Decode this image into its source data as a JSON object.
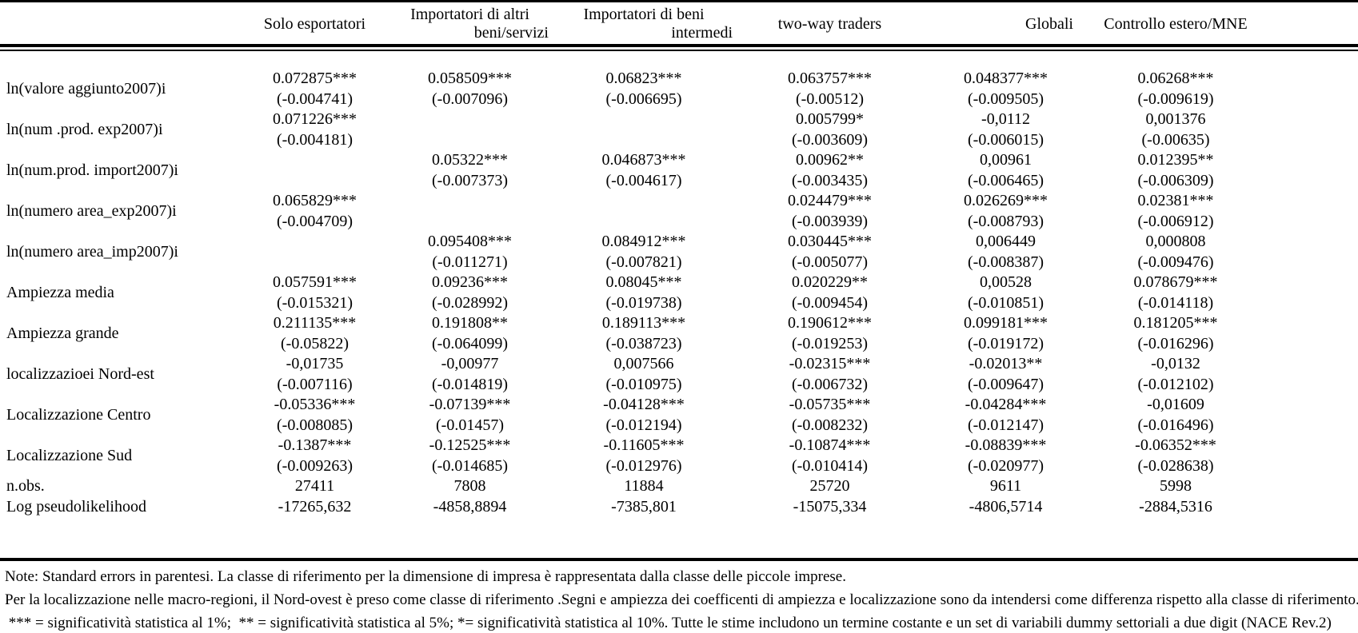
{
  "table": {
    "columns": [
      {
        "lines": [
          ""
        ],
        "align": "center"
      },
      {
        "lines": [
          "Solo esportatori"
        ],
        "align": "center"
      },
      {
        "lines": [
          "Importatori di altri",
          "beni/servizi"
        ],
        "align": "center",
        "last_line_align": "right"
      },
      {
        "lines": [
          "Importatori di beni",
          "intermedi"
        ],
        "align": "center",
        "last_line_align": "right"
      },
      {
        "lines": [
          "two-way traders"
        ],
        "align": "center"
      },
      {
        "lines": [
          "Globali"
        ],
        "align": "right"
      },
      {
        "lines": [
          "Controllo estero/MNE"
        ],
        "align": "center"
      }
    ],
    "rows": [
      {
        "type": "pair",
        "label": "ln(valore aggiunto2007)i",
        "cells": [
          [
            "0.072875***",
            "(-0.004741)"
          ],
          [
            "0.058509***",
            "(-0.007096)"
          ],
          [
            "0.06823***",
            "(-0.006695)"
          ],
          [
            "0.063757***",
            "(-0.00512)"
          ],
          [
            "0.048377***",
            "(-0.009505)"
          ],
          [
            "0.06268***",
            "(-0.009619)"
          ]
        ]
      },
      {
        "type": "pair",
        "label": "ln(num .prod. exp2007)i",
        "cells": [
          [
            "0.071226***",
            "(-0.004181)"
          ],
          null,
          null,
          [
            "0.005799*",
            "(-0.003609)"
          ],
          [
            "-0,0112",
            "(-0.006015)"
          ],
          [
            "0,001376",
            "(-0.00635)"
          ]
        ]
      },
      {
        "type": "pair",
        "label": "ln(num.prod. import2007)i",
        "cells": [
          null,
          [
            "0.05322***",
            "(-0.007373)"
          ],
          [
            "0.046873***",
            "(-0.004617)"
          ],
          [
            "0.00962**",
            "(-0.003435)"
          ],
          [
            "0,00961",
            "(-0.006465)"
          ],
          [
            "0.012395**",
            "(-0.006309)"
          ]
        ]
      },
      {
        "type": "pair",
        "label": "ln(numero area_exp2007)i",
        "cells": [
          [
            "0.065829***",
            "(-0.004709)"
          ],
          null,
          null,
          [
            "0.024479***",
            "(-0.003939)"
          ],
          [
            "0.026269***",
            "(-0.008793)"
          ],
          [
            "0.02381***",
            "(-0.006912)"
          ]
        ]
      },
      {
        "type": "pair",
        "label": "ln(numero area_imp2007)i",
        "cells": [
          null,
          [
            "0.095408***",
            "(-0.011271)"
          ],
          [
            "0.084912***",
            "(-0.007821)"
          ],
          [
            "0.030445***",
            "(-0.005077)"
          ],
          [
            "0,006449",
            "(-0.008387)"
          ],
          [
            "0,000808",
            "(-0.009476)"
          ]
        ]
      },
      {
        "type": "pair",
        "label": "Ampiezza media",
        "cells": [
          [
            "0.057591***",
            "(-0.015321)"
          ],
          [
            "0.09236***",
            "(-0.028992)"
          ],
          [
            "0.08045***",
            "(-0.019738)"
          ],
          [
            "0.020229**",
            "(-0.009454)"
          ],
          [
            "0,00528",
            "(-0.010851)"
          ],
          [
            "0.078679***",
            "(-0.014118)"
          ]
        ]
      },
      {
        "type": "pair",
        "label": "Ampiezza grande",
        "cells": [
          [
            "0.211135***",
            "(-0.05822)"
          ],
          [
            "0.191808**",
            "(-0.064099)"
          ],
          [
            "0.189113***",
            "(-0.038723)"
          ],
          [
            "0.190612***",
            "(-0.019253)"
          ],
          [
            "0.099181***",
            "(-0.019172)"
          ],
          [
            "0.181205***",
            "(-0.016296)"
          ]
        ]
      },
      {
        "type": "pair",
        "label": "localizzazioei Nord-est",
        "cells": [
          [
            "-0,01735",
            "(-0.007116)"
          ],
          [
            "-0,00977",
            "(-0.014819)"
          ],
          [
            "0,007566",
            "(-0.010975)"
          ],
          [
            "-0.02315***",
            "(-0.006732)"
          ],
          [
            "-0.02013**",
            "(-0.009647)"
          ],
          [
            "-0,0132",
            "(-0.012102)"
          ]
        ]
      },
      {
        "type": "pair",
        "label": "Localizzazione Centro",
        "cells": [
          [
            "-0.05336***",
            "(-0.008085)"
          ],
          [
            "-0.07139***",
            "(-0.01457)"
          ],
          [
            "-0.04128***",
            "(-0.012194)"
          ],
          [
            "-0.05735***",
            "(-0.008232)"
          ],
          [
            "-0.04284***",
            "(-0.012147)"
          ],
          [
            "-0,01609",
            "(-0.016496)"
          ]
        ]
      },
      {
        "type": "pair",
        "label": "Localizzazione Sud",
        "cells": [
          [
            "-0.1387***",
            "(-0.009263)"
          ],
          [
            "-0.12525***",
            "(-0.014685)"
          ],
          [
            "-0.11605***",
            "(-0.012976)"
          ],
          [
            "-0.10874***",
            "(-0.010414)"
          ],
          [
            "-0.08839***",
            "(-0.020977)"
          ],
          [
            "-0.06352***",
            "(-0.028638)"
          ]
        ]
      },
      {
        "type": "single",
        "label": "n.obs.",
        "cells": [
          "27411",
          "7808",
          "11884",
          "25720",
          "9611",
          "5998"
        ]
      },
      {
        "type": "single",
        "label": "Log pseudolikelihood",
        "cells": [
          "-17265,632",
          "-4858,8894",
          "-7385,801",
          "-15075,334",
          "-4806,5714",
          "-2884,5316"
        ]
      }
    ]
  },
  "notes": [
    "Note: Standard errors in parentesi. La classe di riferimento per la dimensione di impresa è rappresentata dalla classe delle piccole imprese.",
    "Per la localizzazione nelle macro-regioni, il Nord-ovest è preso come classe di riferimento .Segni e ampiezza dei coefficenti di ampiezza e localizzazione sono da intendersi come differenza rispetto alla classe di riferimento.",
    " *** = significatività statistica al 1%;  ** = significatività statistica al 5%; *= significatività statistica al 10%. Tutte le stime includono un termine costante e un set di variabili dummy settoriali a due digit (NACE Rev.2)"
  ],
  "colors": {
    "text": "#000000",
    "background": "#ffffff",
    "rule": "#000000"
  }
}
